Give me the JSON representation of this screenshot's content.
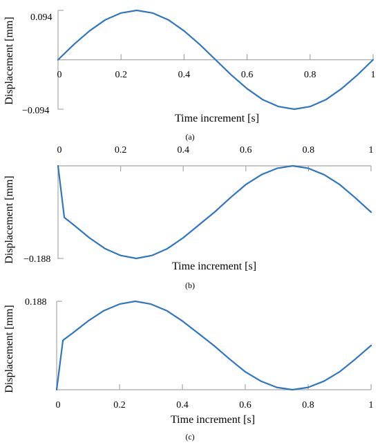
{
  "chart_data": [
    {
      "panel": "(a)",
      "type": "line",
      "xlabel": "Time increment [s]",
      "ylabel": "Displacement [mm]",
      "xlim": [
        0,
        1
      ],
      "ylim": [
        -0.094,
        0.094
      ],
      "x_ticks": [
        "0",
        "0.2",
        "0.4",
        "0.6",
        "0.8",
        "1"
      ],
      "y_ticks": [
        "0.094",
        "−0.094"
      ],
      "x_axis_position": "y=0",
      "colors": {
        "series": "#2E75C3",
        "axis": "#a6a6a6"
      },
      "series": [
        {
          "x": [
            0,
            0.05,
            0.1,
            0.15,
            0.2,
            0.25,
            0.3,
            0.35,
            0.4,
            0.45,
            0.5,
            0.55,
            0.6,
            0.65,
            0.7,
            0.75,
            0.8,
            0.85,
            0.9,
            0.95,
            1
          ],
          "y": [
            0,
            0.029,
            0.055,
            0.076,
            0.089,
            0.094,
            0.089,
            0.076,
            0.055,
            0.029,
            0,
            -0.029,
            -0.055,
            -0.076,
            -0.089,
            -0.094,
            -0.089,
            -0.076,
            -0.055,
            -0.029,
            0
          ]
        }
      ]
    },
    {
      "panel": "(b)",
      "type": "line",
      "xlabel": "Time increment [s]",
      "ylabel": "Displacement [mm]",
      "xlim": [
        0,
        1
      ],
      "ylim": [
        -0.188,
        0
      ],
      "x_ticks": [
        "0",
        "0.2",
        "0.4",
        "0.6",
        "0.8",
        "1"
      ],
      "y_ticks": [
        "−0.188"
      ],
      "x_axis_position": "top",
      "colors": {
        "series": "#2E75C3",
        "axis": "#a6a6a6"
      },
      "series": [
        {
          "x": [
            0,
            0.02,
            0.05,
            0.1,
            0.15,
            0.2,
            0.25,
            0.3,
            0.35,
            0.4,
            0.45,
            0.5,
            0.55,
            0.6,
            0.65,
            0.7,
            0.75,
            0.8,
            0.85,
            0.9,
            0.95,
            1
          ],
          "y": [
            0,
            -0.105,
            -0.12,
            -0.146,
            -0.168,
            -0.182,
            -0.188,
            -0.182,
            -0.168,
            -0.146,
            -0.12,
            -0.094,
            -0.065,
            -0.038,
            -0.018,
            -0.005,
            0,
            -0.005,
            -0.018,
            -0.038,
            -0.065,
            -0.094
          ]
        }
      ]
    },
    {
      "panel": "(c)",
      "type": "line",
      "xlabel": "Time increment [s]",
      "ylabel": "Displacement [mm]",
      "xlim": [
        0,
        1
      ],
      "ylim": [
        0,
        0.188
      ],
      "x_ticks": [
        "0",
        "0.2",
        "0.4",
        "0.6",
        "0.8",
        "1"
      ],
      "y_ticks": [
        "0.188"
      ],
      "x_axis_position": "bottom",
      "colors": {
        "series": "#2E75C3",
        "axis": "#a6a6a6"
      },
      "series": [
        {
          "x": [
            0,
            0.02,
            0.05,
            0.1,
            0.15,
            0.2,
            0.25,
            0.3,
            0.35,
            0.4,
            0.45,
            0.5,
            0.55,
            0.6,
            0.65,
            0.7,
            0.75,
            0.8,
            0.85,
            0.9,
            0.95,
            1
          ],
          "y": [
            0,
            0.105,
            0.12,
            0.146,
            0.168,
            0.182,
            0.188,
            0.182,
            0.168,
            0.146,
            0.12,
            0.094,
            0.065,
            0.038,
            0.018,
            0.005,
            0,
            0.005,
            0.018,
            0.038,
            0.065,
            0.094
          ]
        }
      ]
    }
  ]
}
